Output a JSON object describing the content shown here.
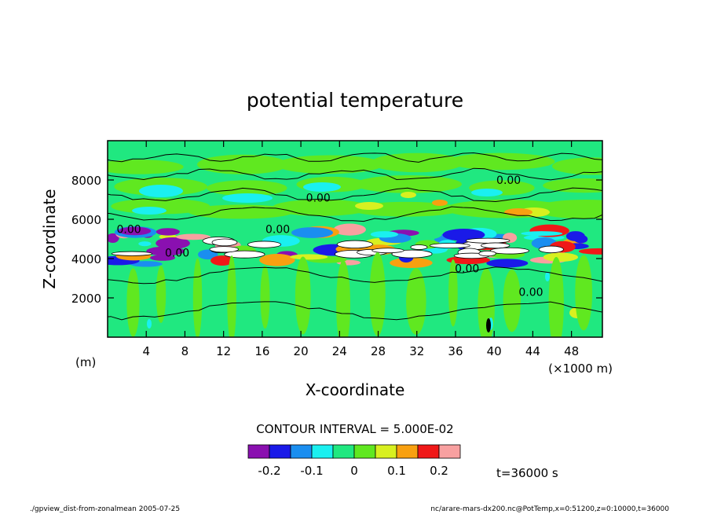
{
  "chart_data": {
    "type": "heatmap",
    "title": "potential temperature",
    "xlabel": "X-coordinate",
    "ylabel": "Z-coordinate",
    "x_unit": "(×1000 m)",
    "y_unit": "(m)",
    "xlim": [
      0,
      51.2
    ],
    "ylim": [
      0,
      10000
    ],
    "x_ticks": [
      4,
      8,
      12,
      16,
      20,
      24,
      28,
      32,
      36,
      40,
      44,
      48
    ],
    "y_ticks": [
      2000,
      4000,
      6000,
      8000
    ],
    "contour_interval_label": "CONTOUR INTERVAL = 5.000E-02",
    "contour_labels": [
      {
        "text": "0.00",
        "x": 21.8,
        "z": 6900
      },
      {
        "text": "0.00",
        "x": 41.5,
        "z": 7800
      },
      {
        "text": "0.00",
        "x": 43.8,
        "z": 2100
      },
      {
        "text": "0.00",
        "x": 37.2,
        "z": 3300
      },
      {
        "text": "0.00",
        "x": 2.2,
        "z": 5300
      },
      {
        "text": "0.00",
        "x": 17.6,
        "z": 5300
      },
      {
        "text": "0.00",
        "x": 7.2,
        "z": 4100
      }
    ],
    "colorbar": {
      "colors": [
        "#8a10b0",
        "#1a1ae8",
        "#1a8ef0",
        "#1af0f0",
        "#20e880",
        "#60e820",
        "#d8f020",
        "#f8a010",
        "#f01818",
        "#f8a0a0"
      ],
      "labels": [
        "-0.2",
        "-0.1",
        "0",
        "0.1",
        "0.2"
      ],
      "label_values": [
        -0.2,
        -0.1,
        0,
        0.1,
        0.2
      ]
    },
    "time_label": "t=36000 s",
    "footer_left": "./gpview_dist-from-zonalmean  2005-07-25",
    "footer_right": "nc/arare-mars-dx200.nc@PotTemp,x=0:51200,z=0:10000,t=36000"
  }
}
